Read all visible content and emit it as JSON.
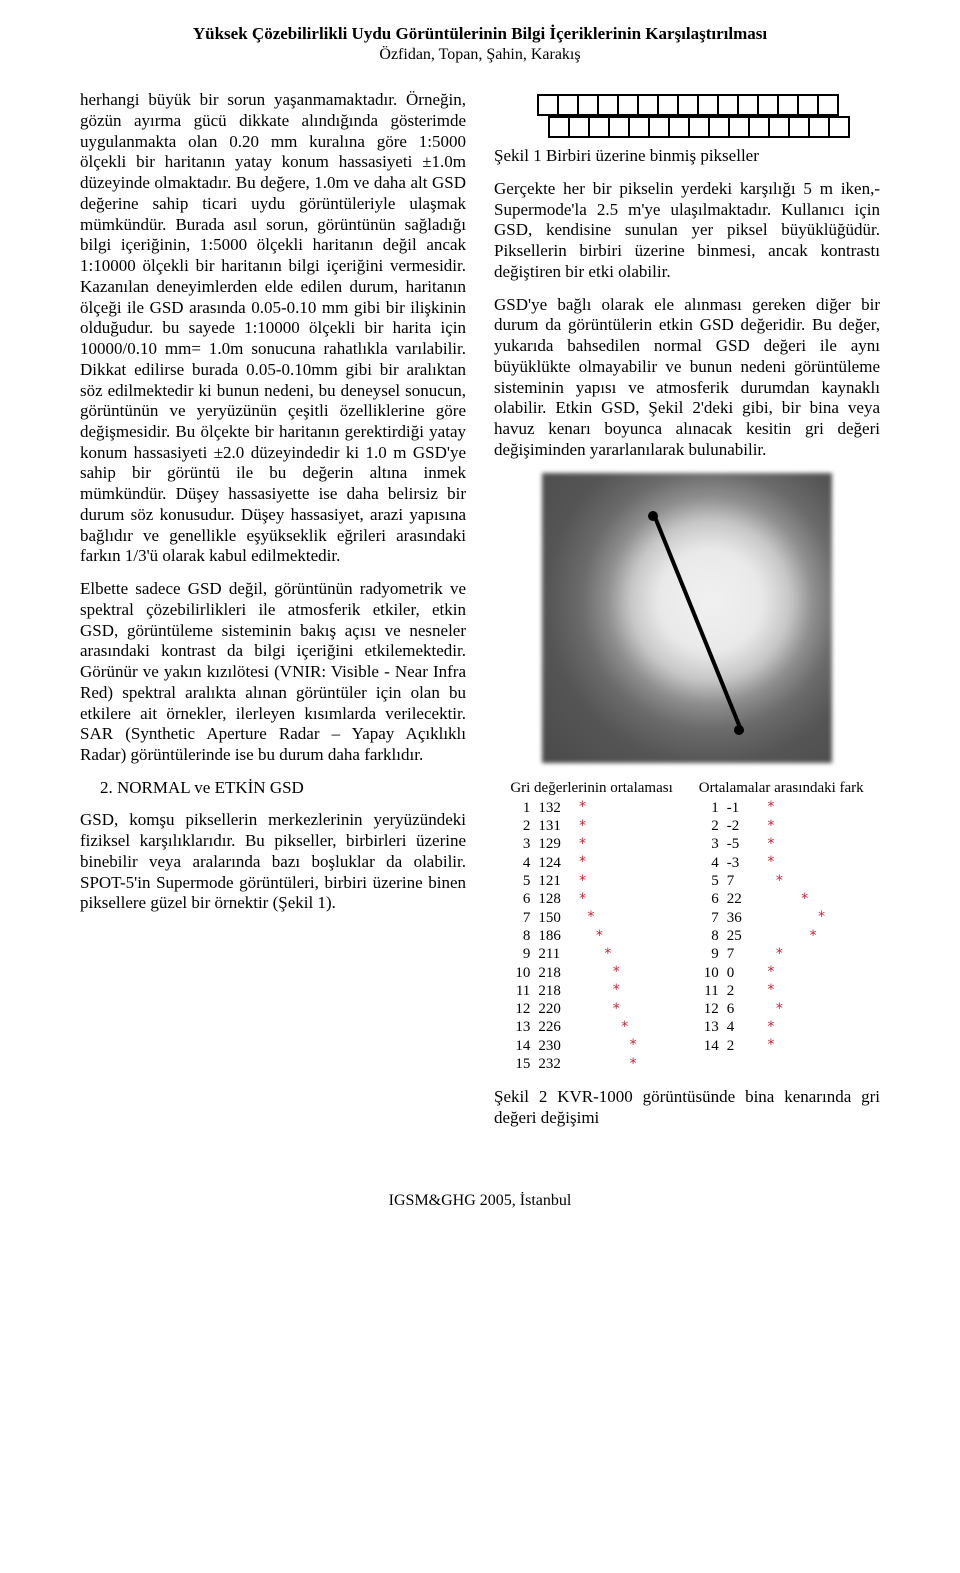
{
  "header": {
    "title": "Yüksek Çözebilirlikli Uydu Görüntülerinin Bilgi İçeriklerinin Karşılaştırılması",
    "authors": "Özfidan, Topan, Şahin, Karakış"
  },
  "left": {
    "para1": "herhangi büyük bir sorun yaşanmamaktadır. Örneğin, gözün ayırma gücü dikkate alındığında gösterimde uygulanmakta olan 0.20 mm kuralına göre 1:5000 ölçekli bir haritanın yatay konum hassasiyeti ±1.0m düzeyinde olmaktadır. Bu değere, 1.0m ve daha alt GSD değerine sahip ticari uydu görüntüleriyle ulaşmak mümkündür. Burada asıl sorun, görüntünün sağladığı bilgi içeriğinin, 1:5000 ölçekli haritanın değil ancak 1:10000 ölçekli bir haritanın bilgi içeriğini vermesidir. Kazanılan deneyimlerden elde edilen durum, haritanın ölçeği ile GSD arasında 0.05-0.10 mm gibi bir ilişkinin olduğudur. bu sayede 1:10000 ölçekli bir harita için 10000/0.10 mm= 1.0m sonucuna rahatlıkla varılabilir. Dikkat edilirse burada 0.05-0.10mm gibi bir aralıktan söz edilmektedir ki bunun nedeni, bu deneysel sonucun, görüntünün ve yeryüzünün çeşitli özelliklerine göre değişmesidir. Bu ölçekte bir haritanın gerektirdiği yatay konum hassasiyeti ±2.0 düzeyindedir ki 1.0 m GSD'ye sahip bir görüntü ile bu değerin altına inmek mümkündür. Düşey hassasiyette ise daha belirsiz bir durum söz konusudur. Düşey hassasiyet, arazi yapısına bağlıdır ve genellikle eşyükseklik eğrileri arasındaki farkın 1/3'ü olarak kabul edilmektedir.",
    "para2": "Elbette sadece GSD değil, görüntünün radyometrik ve spektral çözebilirlikleri ile atmosferik etkiler, etkin GSD, görüntüleme sisteminin bakış açısı ve nesneler arasındaki kontrast da bilgi içeriğini etkilemektedir. Görünür ve yakın kızılötesi (VNIR: Visible - Near Infra Red) spektral aralıkta alınan görüntüler için olan bu etkilere ait örnekler, ilerleyen kısımlarda verilecektir. SAR (Synthetic Aperture Radar – Yapay Açıklıklı Radar) görüntülerinde ise bu durum daha farklıdır.",
    "section2": "2.  NORMAL ve ETKİN GSD",
    "para3": "GSD, komşu piksellerin merkezlerinin yeryüzündeki fiziksel karşılıklarıdır. Bu pikseller, birbirleri üzerine binebilir veya aralarında bazı boşluklar da olabilir. SPOT-5'in Supermode görüntüleri, birbiri üzerine binen piksellere güzel bir örnektir (Şekil 1)."
  },
  "right": {
    "fig1_caption": "Şekil 1 Birbiri üzerine binmiş pikseller",
    "para1": "Gerçekte her bir pikselin yerdeki karşılığı 5 m iken,- Supermode'la 2.5 m'ye ulaşılmaktadır. Kullanıcı için GSD, kendisine sunulan yer piksel büyüklüğüdür. Piksellerin birbiri üzerine binmesi, ancak kontrastı değiştiren bir etki olabilir.",
    "para2": "GSD'ye bağlı olarak ele alınması gereken diğer bir durum da görüntülerin etkin GSD değeridir. Bu değer, yukarıda bahsedilen normal GSD değeri ile aynı büyüklükte olmayabilir ve bunun nedeni görüntüleme sisteminin yapısı ve atmosferik durumdan kaynaklı olabilir. Etkin GSD, Şekil 2'deki gibi, bir bina veya havuz kenarı boyunca alınacak kesitin gri değeri değişiminden yararlanılarak bulunabilir.",
    "tblA_header": "Gri değerlerinin ortalaması",
    "tblB_header": "Ortalamalar arasındaki fark",
    "tblA": {
      "idx": [
        1,
        2,
        3,
        4,
        5,
        6,
        7,
        8,
        9,
        10,
        11,
        12,
        13,
        14,
        15
      ],
      "val": [
        132,
        131,
        129,
        124,
        121,
        128,
        150,
        186,
        211,
        218,
        218,
        220,
        226,
        230,
        232
      ],
      "star": [
        "*",
        "*",
        "*",
        "*",
        "*",
        "*",
        " *",
        "  *",
        "   *",
        "    *",
        "    *",
        "    *",
        "     *",
        "      *",
        "      *"
      ]
    },
    "tblB": {
      "idx": [
        1,
        2,
        3,
        4,
        5,
        6,
        7,
        8,
        9,
        10,
        11,
        12,
        13,
        14
      ],
      "val": [
        "-1",
        "-2",
        "-5",
        "-3",
        "7",
        "22",
        "36",
        "25",
        "7",
        "0",
        "2",
        "6",
        "4",
        "2"
      ],
      "star": [
        "*",
        "*",
        "*",
        "*",
        " *",
        "    *",
        "      *",
        "     *",
        " *",
        "*",
        "*",
        " *",
        "*",
        "*"
      ]
    },
    "fig2_caption": "Şekil 2 KVR-1000 görüntüsünde bina kenarında gri değeri değişimi"
  },
  "footer": "IGSM&GHG 2005, İstanbul"
}
